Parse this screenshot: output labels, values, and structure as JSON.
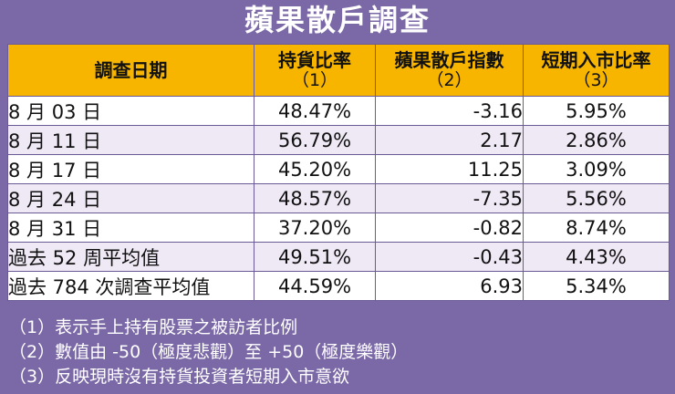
{
  "title": "蘋果散戶調查",
  "headers": [
    {
      "main": "調查日期",
      "sub": ""
    },
    {
      "main": "持貨比率",
      "sub": "（1）"
    },
    {
      "main": "蘋果散戶指數",
      "sub": "（2）"
    },
    {
      "main": "短期入市比率",
      "sub": "（3）"
    }
  ],
  "rows": [
    {
      "date": "8 月 03 日",
      "holding": "48.47%",
      "index": "-3.16",
      "entry": "5.95%"
    },
    {
      "date": "8 月 11 日",
      "holding": "56.79%",
      "index": "2.17",
      "entry": "2.86%"
    },
    {
      "date": "8 月 17 日",
      "holding": "45.20%",
      "index": "11.25",
      "entry": "3.09%"
    },
    {
      "date": "8 月 24 日",
      "holding": "48.57%",
      "index": "-7.35",
      "entry": "5.56%"
    },
    {
      "date": "8 月 31 日",
      "holding": "37.20%",
      "index": "-0.82",
      "entry": "8.74%"
    },
    {
      "date": "過去 52 周平均值",
      "holding": "49.51%",
      "index": "-0.43",
      "entry": "4.43%"
    },
    {
      "date": "過去 784 次調查平均值",
      "holding": "44.59%",
      "index": "6.93",
      "entry": "5.34%"
    }
  ],
  "notes": [
    "（1）表示手上持有股票之被訪者比例",
    "（2）數值由 -50（極度悲觀）至 +50（極度樂觀）",
    "（3）反映現時沒有持貨投資者短期入市意欲"
  ]
}
